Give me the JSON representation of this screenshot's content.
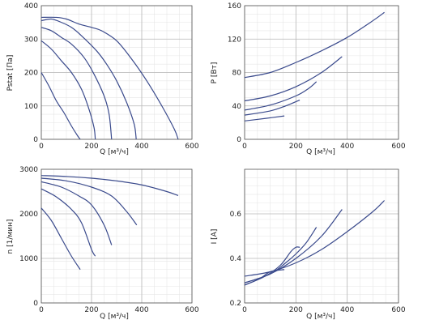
{
  "style": {
    "line_color": "#3a4a8c",
    "grid_major": "#b8b8b8",
    "grid_minor": "#e6e6e6",
    "frame": "#555555"
  },
  "chart_data": [
    {
      "type": "line",
      "xlabel": "Q [м³/ч]",
      "ylabel": "Pstat [Па]",
      "xlim": [
        0,
        600
      ],
      "ylim": [
        0,
        400
      ],
      "xticks": [
        0,
        200,
        400,
        600
      ],
      "yticks": [
        0,
        100,
        200,
        300,
        400
      ],
      "grid": true,
      "series": [
        {
          "x": [
            0,
            60,
            100,
            150,
            200,
            240,
            300,
            360,
            420,
            480,
            530,
            545
          ],
          "y": [
            365,
            365,
            360,
            345,
            335,
            325,
            295,
            240,
            175,
            100,
            30,
            0
          ]
        },
        {
          "x": [
            0,
            40,
            80,
            120,
            160,
            220,
            260,
            300,
            340,
            370,
            378
          ],
          "y": [
            355,
            360,
            350,
            335,
            310,
            265,
            225,
            175,
            110,
            45,
            0
          ]
        },
        {
          "x": [
            0,
            40,
            80,
            120,
            170,
            210,
            250,
            270,
            280
          ],
          "y": [
            335,
            325,
            305,
            285,
            245,
            195,
            130,
            75,
            0
          ]
        },
        {
          "x": [
            0,
            40,
            80,
            120,
            160,
            190,
            210,
            215
          ],
          "y": [
            295,
            270,
            235,
            200,
            150,
            90,
            35,
            0
          ]
        },
        {
          "x": [
            0,
            30,
            60,
            90,
            120,
            145,
            155
          ],
          "y": [
            200,
            160,
            115,
            80,
            40,
            10,
            0
          ]
        }
      ]
    },
    {
      "type": "line",
      "xlabel": "Q [м³/ч]",
      "ylabel": "P [Вт]",
      "xlim": [
        0,
        600
      ],
      "ylim": [
        0,
        160
      ],
      "xticks": [
        0,
        200,
        400,
        600
      ],
      "yticks": [
        0,
        40,
        80,
        120,
        160
      ],
      "grid": true,
      "series": [
        {
          "x": [
            0,
            100,
            200,
            300,
            400,
            500,
            545
          ],
          "y": [
            74,
            80,
            92,
            106,
            122,
            142,
            152
          ]
        },
        {
          "x": [
            0,
            100,
            200,
            300,
            380
          ],
          "y": [
            46,
            52,
            63,
            80,
            99
          ]
        },
        {
          "x": [
            0,
            100,
            200,
            250,
            280
          ],
          "y": [
            35,
            41,
            52,
            61,
            69
          ]
        },
        {
          "x": [
            0,
            100,
            160,
            215
          ],
          "y": [
            29,
            34,
            40,
            47
          ]
        },
        {
          "x": [
            0,
            80,
            155
          ],
          "y": [
            22,
            25,
            28
          ]
        }
      ]
    },
    {
      "type": "line",
      "xlabel": "Q [м³/ч]",
      "ylabel": "n [1/мин]",
      "xlim": [
        0,
        600
      ],
      "ylim": [
        0,
        3000
      ],
      "xticks": [
        0,
        200,
        400,
        600
      ],
      "yticks": [
        0,
        1000,
        2000,
        3000
      ],
      "grid": true,
      "series": [
        {
          "x": [
            0,
            100,
            200,
            300,
            400,
            500,
            545
          ],
          "y": [
            2860,
            2840,
            2800,
            2740,
            2650,
            2500,
            2410
          ]
        },
        {
          "x": [
            0,
            100,
            200,
            280,
            340,
            380
          ],
          "y": [
            2800,
            2740,
            2600,
            2400,
            2050,
            1750
          ]
        },
        {
          "x": [
            0,
            80,
            150,
            200,
            250,
            280
          ],
          "y": [
            2720,
            2600,
            2400,
            2200,
            1750,
            1300
          ]
        },
        {
          "x": [
            0,
            60,
            120,
            160,
            200,
            215
          ],
          "y": [
            2560,
            2380,
            2100,
            1800,
            1200,
            1050
          ]
        },
        {
          "x": [
            0,
            40,
            80,
            120,
            155
          ],
          "y": [
            2130,
            1850,
            1450,
            1050,
            750
          ]
        }
      ]
    },
    {
      "type": "line",
      "xlabel": "Q [м³/ч]",
      "ylabel": "I [A]",
      "xlim": [
        0,
        600
      ],
      "ylim": [
        0.2,
        0.8
      ],
      "xticks": [
        0,
        200,
        400,
        600
      ],
      "yticks": [
        0.2,
        0.4,
        0.6
      ],
      "grid": true,
      "series": [
        {
          "x": [
            0,
            100,
            200,
            300,
            400,
            500,
            545
          ],
          "y": [
            0.32,
            0.34,
            0.38,
            0.44,
            0.52,
            0.61,
            0.66
          ]
        },
        {
          "x": [
            0,
            100,
            200,
            300,
            380
          ],
          "y": [
            0.29,
            0.33,
            0.4,
            0.5,
            0.62
          ]
        },
        {
          "x": [
            0,
            100,
            160,
            200,
            240,
            280
          ],
          "y": [
            0.29,
            0.33,
            0.38,
            0.42,
            0.47,
            0.54
          ]
        },
        {
          "x": [
            0,
            80,
            140,
            180,
            200,
            215
          ],
          "y": [
            0.28,
            0.32,
            0.37,
            0.43,
            0.45,
            0.45
          ]
        },
        {
          "x": [
            0,
            60,
            100,
            155
          ],
          "y": [
            0.28,
            0.31,
            0.34,
            0.35
          ]
        }
      ]
    }
  ]
}
